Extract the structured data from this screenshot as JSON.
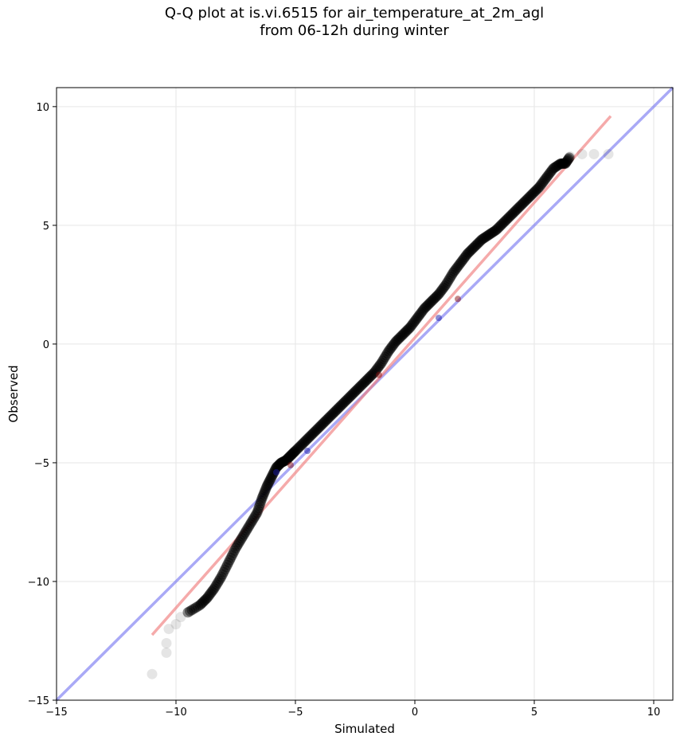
{
  "chart_data": {
    "type": "scatter",
    "title_line1": "Q-Q plot at is.vi.6515 for air_temperature_at_2m_agl",
    "title_line2": "from 06-12h during winter",
    "xlabel": "Simulated",
    "ylabel": "Observed",
    "xlim": [
      -15,
      10.8
    ],
    "ylim": [
      -15,
      10.8
    ],
    "xticks": [
      -15,
      -10,
      -5,
      0,
      5,
      10
    ],
    "yticks": [
      -15,
      -10,
      -5,
      0,
      5,
      10
    ],
    "tick_labels": [
      "−15",
      "−10",
      "−5",
      "0",
      "5",
      "10"
    ],
    "grid": true,
    "colors": {
      "points": "#000000",
      "identity_line": "#6f6ff0",
      "fit_line": "#f07c7c",
      "central_marker": "#1a1aa8",
      "central_marker_alt": "#8a0e0e"
    },
    "identity_line": {
      "x": [
        -15,
        10.8
      ],
      "y": [
        -15,
        10.8
      ]
    },
    "fit_line": {
      "x": [
        -11,
        8.2
      ],
      "y": [
        -12.25,
        9.6
      ]
    },
    "quantiles": {
      "x": [
        -11.0,
        -10.4,
        -10.4,
        -10.3,
        -10.0,
        -9.8,
        -9.5,
        -9.0,
        -8.7,
        -8.4,
        -8.1,
        -7.8,
        -7.5,
        -7.2,
        -6.9,
        -6.6,
        -6.4,
        -6.2,
        -6.0,
        -5.8,
        -5.6,
        -5.4,
        -5.2,
        -5.0,
        -4.7,
        -4.4,
        -4.1,
        -3.8,
        -3.5,
        -3.2,
        -2.9,
        -2.6,
        -2.3,
        -2.0,
        -1.7,
        -1.4,
        -1.1,
        -0.8,
        -0.5,
        -0.2,
        0.1,
        0.4,
        0.7,
        1.0,
        1.3,
        1.6,
        1.9,
        2.2,
        2.5,
        2.8,
        3.1,
        3.4,
        3.7,
        4.0,
        4.3,
        4.6,
        4.9,
        5.2,
        5.5,
        5.8,
        6.1,
        6.3,
        6.5,
        7.0,
        7.5,
        8.1
      ],
      "y": [
        -13.9,
        -13.0,
        -12.6,
        -12.0,
        -11.8,
        -11.5,
        -11.3,
        -11.0,
        -10.7,
        -10.3,
        -9.8,
        -9.2,
        -8.6,
        -8.1,
        -7.6,
        -7.1,
        -6.5,
        -6.0,
        -5.6,
        -5.2,
        -5.0,
        -4.9,
        -4.7,
        -4.5,
        -4.2,
        -3.9,
        -3.6,
        -3.3,
        -3.0,
        -2.7,
        -2.4,
        -2.1,
        -1.8,
        -1.5,
        -1.2,
        -0.8,
        -0.3,
        0.1,
        0.4,
        0.7,
        1.1,
        1.5,
        1.8,
        2.1,
        2.5,
        3.0,
        3.4,
        3.8,
        4.1,
        4.4,
        4.6,
        4.8,
        5.1,
        5.4,
        5.7,
        6.0,
        6.3,
        6.6,
        7.0,
        7.4,
        7.6,
        7.6,
        7.9,
        8.0,
        8.0,
        8.0
      ]
    }
  }
}
